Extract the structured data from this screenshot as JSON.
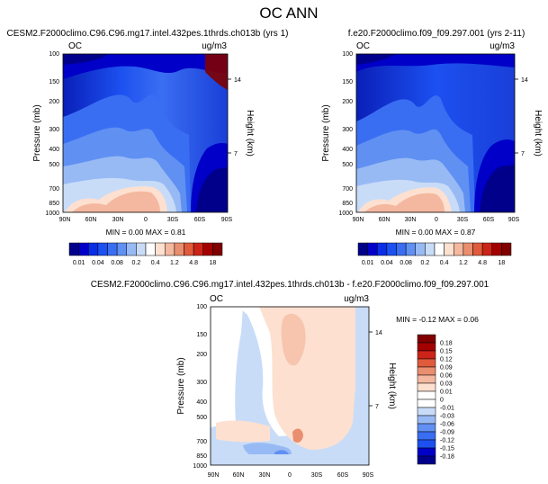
{
  "figure": {
    "title": "OC ANN"
  },
  "panels": [
    {
      "id": "p1",
      "case_title": "CESM2.F2000climo.C96.C96.mg17.intel.432pes.1thrds.ch013b (yrs 1)",
      "var_label": "OC",
      "units": "ug/m3",
      "stats_label": "MIN =   0.00  MAX =   0.81"
    },
    {
      "id": "p2",
      "case_title": "f.e20.F2000climo.f09_f09.297.001 (yrs 2-11)",
      "var_label": "OC",
      "units": "ug/m3",
      "stats_label": "MIN =   0.00  MAX =   0.87"
    },
    {
      "id": "p3",
      "case_title": "CESM2.F2000climo.C96.C96.mg17.intel.432pes.1thrds.ch013b - f.e20.F2000climo.f09_f09.297.001",
      "var_label": "OC",
      "units": "ug/m3",
      "stats_label": "MIN =  -0.12  MAX =   0.06"
    }
  ],
  "chart_data": [
    {
      "type": "heatmap",
      "title": "CESM2.F2000climo.C96.C96.mg17.intel.432pes.1thrds.ch013b (yrs 1)",
      "ylabel": "Pressure (mb)",
      "y2label": "Height (km)",
      "x_tick_labels": [
        "90N",
        "60N",
        "30N",
        "0",
        "30S",
        "60S",
        "90S"
      ],
      "y_tick_labels": [
        "100",
        "150",
        "200",
        "300",
        "400",
        "500",
        "700",
        "850",
        "1000"
      ],
      "y2_tick_labels": [
        "14",
        "7"
      ],
      "y_log_scale": true,
      "ylim": [
        1000,
        100
      ],
      "contour_levels": [
        0.01,
        0.02,
        0.04,
        0.06,
        0.08,
        0.1,
        0.2,
        0.3,
        0.4,
        0.8,
        1.2,
        2.4,
        4.8,
        9.6,
        18
      ],
      "colorbar_labels": [
        "0.01",
        "0.04",
        "0.08",
        "0.2",
        "0.4",
        "1.2",
        "4.8",
        "18"
      ],
      "min": 0.0,
      "max": 0.81
    },
    {
      "type": "heatmap",
      "title": "f.e20.F2000climo.f09_f09.297.001 (yrs 2-11)",
      "ylabel": "Pressure (mb)",
      "y2label": "Height (km)",
      "x_tick_labels": [
        "90N",
        "60N",
        "30N",
        "0",
        "30S",
        "60S",
        "90S"
      ],
      "y_tick_labels": [
        "100",
        "150",
        "200",
        "300",
        "400",
        "500",
        "700",
        "850",
        "1000"
      ],
      "y2_tick_labels": [
        "14",
        "7"
      ],
      "y_log_scale": true,
      "ylim": [
        1000,
        100
      ],
      "contour_levels": [
        0.01,
        0.02,
        0.04,
        0.06,
        0.08,
        0.1,
        0.2,
        0.3,
        0.4,
        0.8,
        1.2,
        2.4,
        4.8,
        9.6,
        18
      ],
      "colorbar_labels": [
        "0.01",
        "0.04",
        "0.08",
        "0.2",
        "0.4",
        "1.2",
        "4.8",
        "18"
      ],
      "min": 0.0,
      "max": 0.87
    },
    {
      "type": "heatmap",
      "title": "CESM2.F2000climo.C96.C96.mg17.intel.432pes.1thrds.ch013b - f.e20.F2000climo.f09_f09.297.001",
      "ylabel": "Pressure (mb)",
      "y2label": "Height (km)",
      "x_tick_labels": [
        "90N",
        "60N",
        "30N",
        "0",
        "30S",
        "60S",
        "90S"
      ],
      "y_tick_labels": [
        "100",
        "150",
        "200",
        "300",
        "400",
        "500",
        "700",
        "850",
        "1000"
      ],
      "y2_tick_labels": [
        "14",
        "7"
      ],
      "y_log_scale": true,
      "ylim": [
        1000,
        100
      ],
      "contour_levels": [
        -0.18,
        -0.15,
        -0.12,
        -0.09,
        -0.06,
        -0.03,
        -0.01,
        0,
        0.01,
        0.03,
        0.06,
        0.09,
        0.12,
        0.15,
        0.18
      ],
      "colorbar_labels": [
        "0.18",
        "0.15",
        "0.12",
        "0.09",
        "0.06",
        "0.03",
        "0.01",
        "0",
        "-0.01",
        "-0.03",
        "-0.06",
        "-0.09",
        "-0.12",
        "-0.15",
        "-0.18"
      ],
      "min": -0.12,
      "max": 0.06
    }
  ],
  "colors": {
    "abs_scale": [
      "#00008b",
      "#0000c8",
      "#0a2ee6",
      "#1c50f0",
      "#3a6ef2",
      "#6090f2",
      "#98baf4",
      "#c8dcf8",
      "#ffffff",
      "#fde0d0",
      "#f4b8a0",
      "#ea8e70",
      "#e05a3c",
      "#cc2418",
      "#a30000",
      "#800000"
    ],
    "diff_scale": [
      "#800000",
      "#a30000",
      "#cc2418",
      "#e05a3c",
      "#ea8e70",
      "#f4b8a0",
      "#fde0d0",
      "#ffffff",
      "#ffffff",
      "#c8dcf8",
      "#98baf4",
      "#6090f2",
      "#3a6ef2",
      "#1c50f0",
      "#0000c8",
      "#00008b"
    ]
  }
}
